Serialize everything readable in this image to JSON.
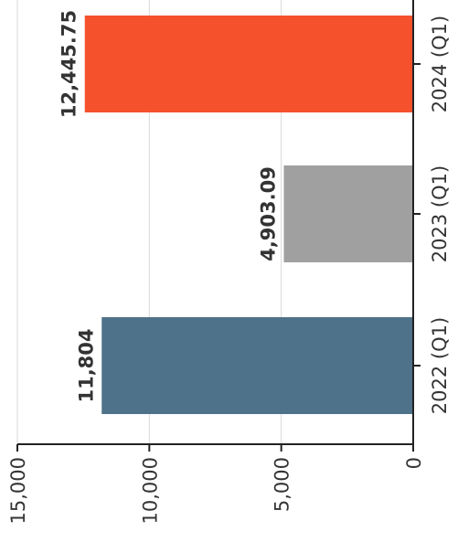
{
  "chart_data": {
    "type": "bar",
    "orientation": "rotated-90-clockwise",
    "title": "",
    "xlabel": "",
    "ylabel": "",
    "categories": [
      "2022 (Q1)",
      "2023 (Q1)",
      "2024 (Q1)"
    ],
    "values": [
      11804,
      4903.09,
      12445.75
    ],
    "value_labels": [
      "11,804",
      "4,903.09",
      "12,445.75"
    ],
    "bar_colors": [
      "#4e7289",
      "#a0a0a0",
      "#f4512c"
    ],
    "ylim": [
      0,
      15000
    ],
    "yticks": [
      0,
      5000,
      10000,
      15000
    ],
    "ytick_labels": [
      "0",
      "5,000",
      "10,000",
      "15,000"
    ],
    "grid": true,
    "legend": "none"
  }
}
